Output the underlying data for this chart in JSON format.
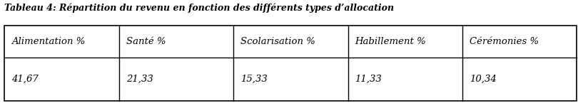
{
  "title": "Tableau 4: Répartition du revenu en fonction des différents types d’allocation",
  "columns": [
    "Alimentation %",
    "Santé %",
    "Scolarisation %",
    "Habillement %",
    "Cérémonies %"
  ],
  "values": [
    "41,67",
    "21,33",
    "15,33",
    "11,33",
    "10,34"
  ],
  "title_fontsize": 9,
  "header_fontsize": 9.5,
  "value_fontsize": 9.5,
  "bg_color": "#ffffff",
  "border_color": "#000000",
  "title_color": "#000000"
}
